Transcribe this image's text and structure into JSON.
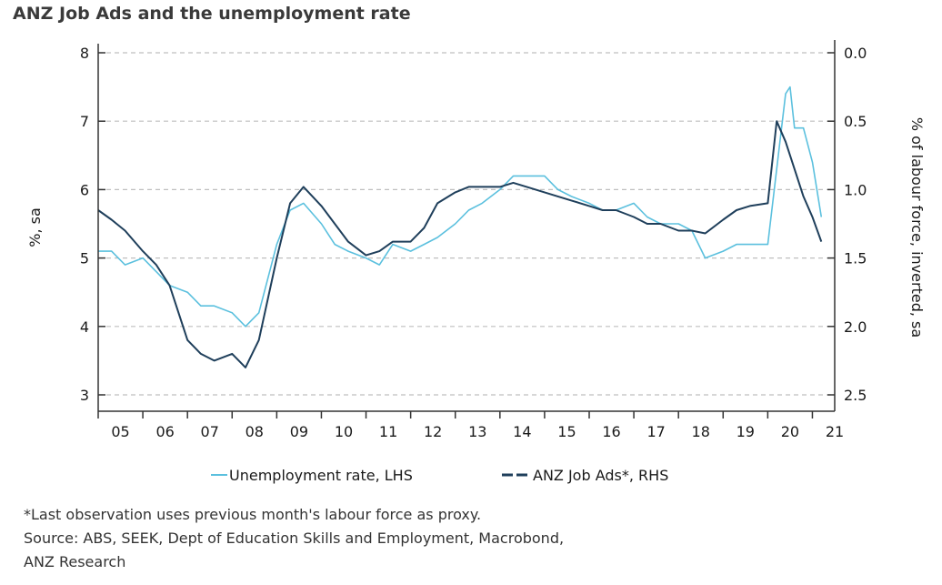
{
  "chart_data": {
    "type": "line",
    "title": "ANZ Job Ads and the unemployment rate",
    "ylabel_left": "%, sa",
    "ylabel_right": "% of labour force, inverted, sa",
    "x_ticks": [
      "05",
      "06",
      "07",
      "08",
      "09",
      "10",
      "11",
      "12",
      "13",
      "14",
      "15",
      "16",
      "17",
      "18",
      "19",
      "20",
      "21"
    ],
    "y_left_ticks": [
      "3",
      "4",
      "5",
      "6",
      "7",
      "8"
    ],
    "y_right_ticks": [
      "0.0",
      "0.5",
      "1.0",
      "1.5",
      "2.0",
      "2.5"
    ],
    "ylim_left": [
      3,
      8
    ],
    "ylim_right_inverted": [
      0.0,
      2.5
    ],
    "xlim": [
      2005,
      2021.5
    ],
    "grid": "horizontal dashed",
    "legend_position": "bottom",
    "series": [
      {
        "name": "Unemployment rate, LHS",
        "axis": "left",
        "color": "#5bc0de",
        "x": [
          2005.0,
          2005.3,
          2005.6,
          2006.0,
          2006.3,
          2006.6,
          2007.0,
          2007.3,
          2007.6,
          2008.0,
          2008.3,
          2008.6,
          2009.0,
          2009.3,
          2009.6,
          2010.0,
          2010.3,
          2010.6,
          2011.0,
          2011.3,
          2011.6,
          2012.0,
          2012.3,
          2012.6,
          2013.0,
          2013.3,
          2013.6,
          2014.0,
          2014.3,
          2014.6,
          2015.0,
          2015.3,
          2015.6,
          2016.0,
          2016.3,
          2016.6,
          2017.0,
          2017.3,
          2017.6,
          2018.0,
          2018.3,
          2018.6,
          2019.0,
          2019.3,
          2019.6,
          2020.0,
          2020.2,
          2020.4,
          2020.5,
          2020.6,
          2020.8,
          2021.0,
          2021.2
        ],
        "values": [
          5.1,
          5.1,
          4.9,
          5.0,
          4.8,
          4.6,
          4.5,
          4.3,
          4.3,
          4.2,
          4.0,
          4.2,
          5.2,
          5.7,
          5.8,
          5.5,
          5.2,
          5.1,
          5.0,
          4.9,
          5.2,
          5.1,
          5.2,
          5.3,
          5.5,
          5.7,
          5.8,
          6.0,
          6.2,
          6.2,
          6.2,
          6.0,
          5.9,
          5.8,
          5.7,
          5.7,
          5.8,
          5.6,
          5.5,
          5.5,
          5.4,
          5.0,
          5.1,
          5.2,
          5.2,
          5.2,
          6.3,
          7.4,
          7.5,
          6.9,
          6.9,
          6.4,
          5.6
        ]
      },
      {
        "name": "ANZ Job Ads*, RHS",
        "axis": "right",
        "color": "#1f3f5b",
        "x": [
          2005.0,
          2005.3,
          2005.6,
          2006.0,
          2006.3,
          2006.6,
          2007.0,
          2007.3,
          2007.6,
          2008.0,
          2008.3,
          2008.6,
          2009.0,
          2009.3,
          2009.6,
          2010.0,
          2010.3,
          2010.6,
          2011.0,
          2011.3,
          2011.6,
          2012.0,
          2012.3,
          2012.6,
          2013.0,
          2013.3,
          2013.6,
          2014.0,
          2014.3,
          2014.6,
          2015.0,
          2015.3,
          2015.6,
          2016.0,
          2016.3,
          2016.6,
          2017.0,
          2017.3,
          2017.6,
          2018.0,
          2018.3,
          2018.6,
          2019.0,
          2019.3,
          2019.6,
          2020.0,
          2020.2,
          2020.4,
          2020.6,
          2020.8,
          2021.0,
          2021.2
        ],
        "values": [
          1.15,
          1.22,
          1.3,
          1.45,
          1.55,
          1.7,
          2.1,
          2.2,
          2.25,
          2.2,
          2.3,
          2.1,
          1.5,
          1.1,
          0.98,
          1.12,
          1.25,
          1.38,
          1.48,
          1.45,
          1.38,
          1.38,
          1.28,
          1.1,
          1.02,
          0.98,
          0.98,
          0.98,
          0.95,
          0.98,
          1.02,
          1.05,
          1.08,
          1.12,
          1.15,
          1.15,
          1.2,
          1.25,
          1.25,
          1.3,
          1.3,
          1.32,
          1.22,
          1.15,
          1.12,
          1.1,
          0.5,
          0.65,
          0.85,
          1.05,
          1.2,
          1.38
        ]
      }
    ],
    "footnotes": [
      "*Last observation uses previous month's labour force as proxy.",
      "Source: ABS, SEEK, Dept of Education Skills and Employment, Macrobond,",
      "ANZ Research"
    ]
  },
  "colors": {
    "grid": "#bfbfbf",
    "axis": "#333333"
  }
}
